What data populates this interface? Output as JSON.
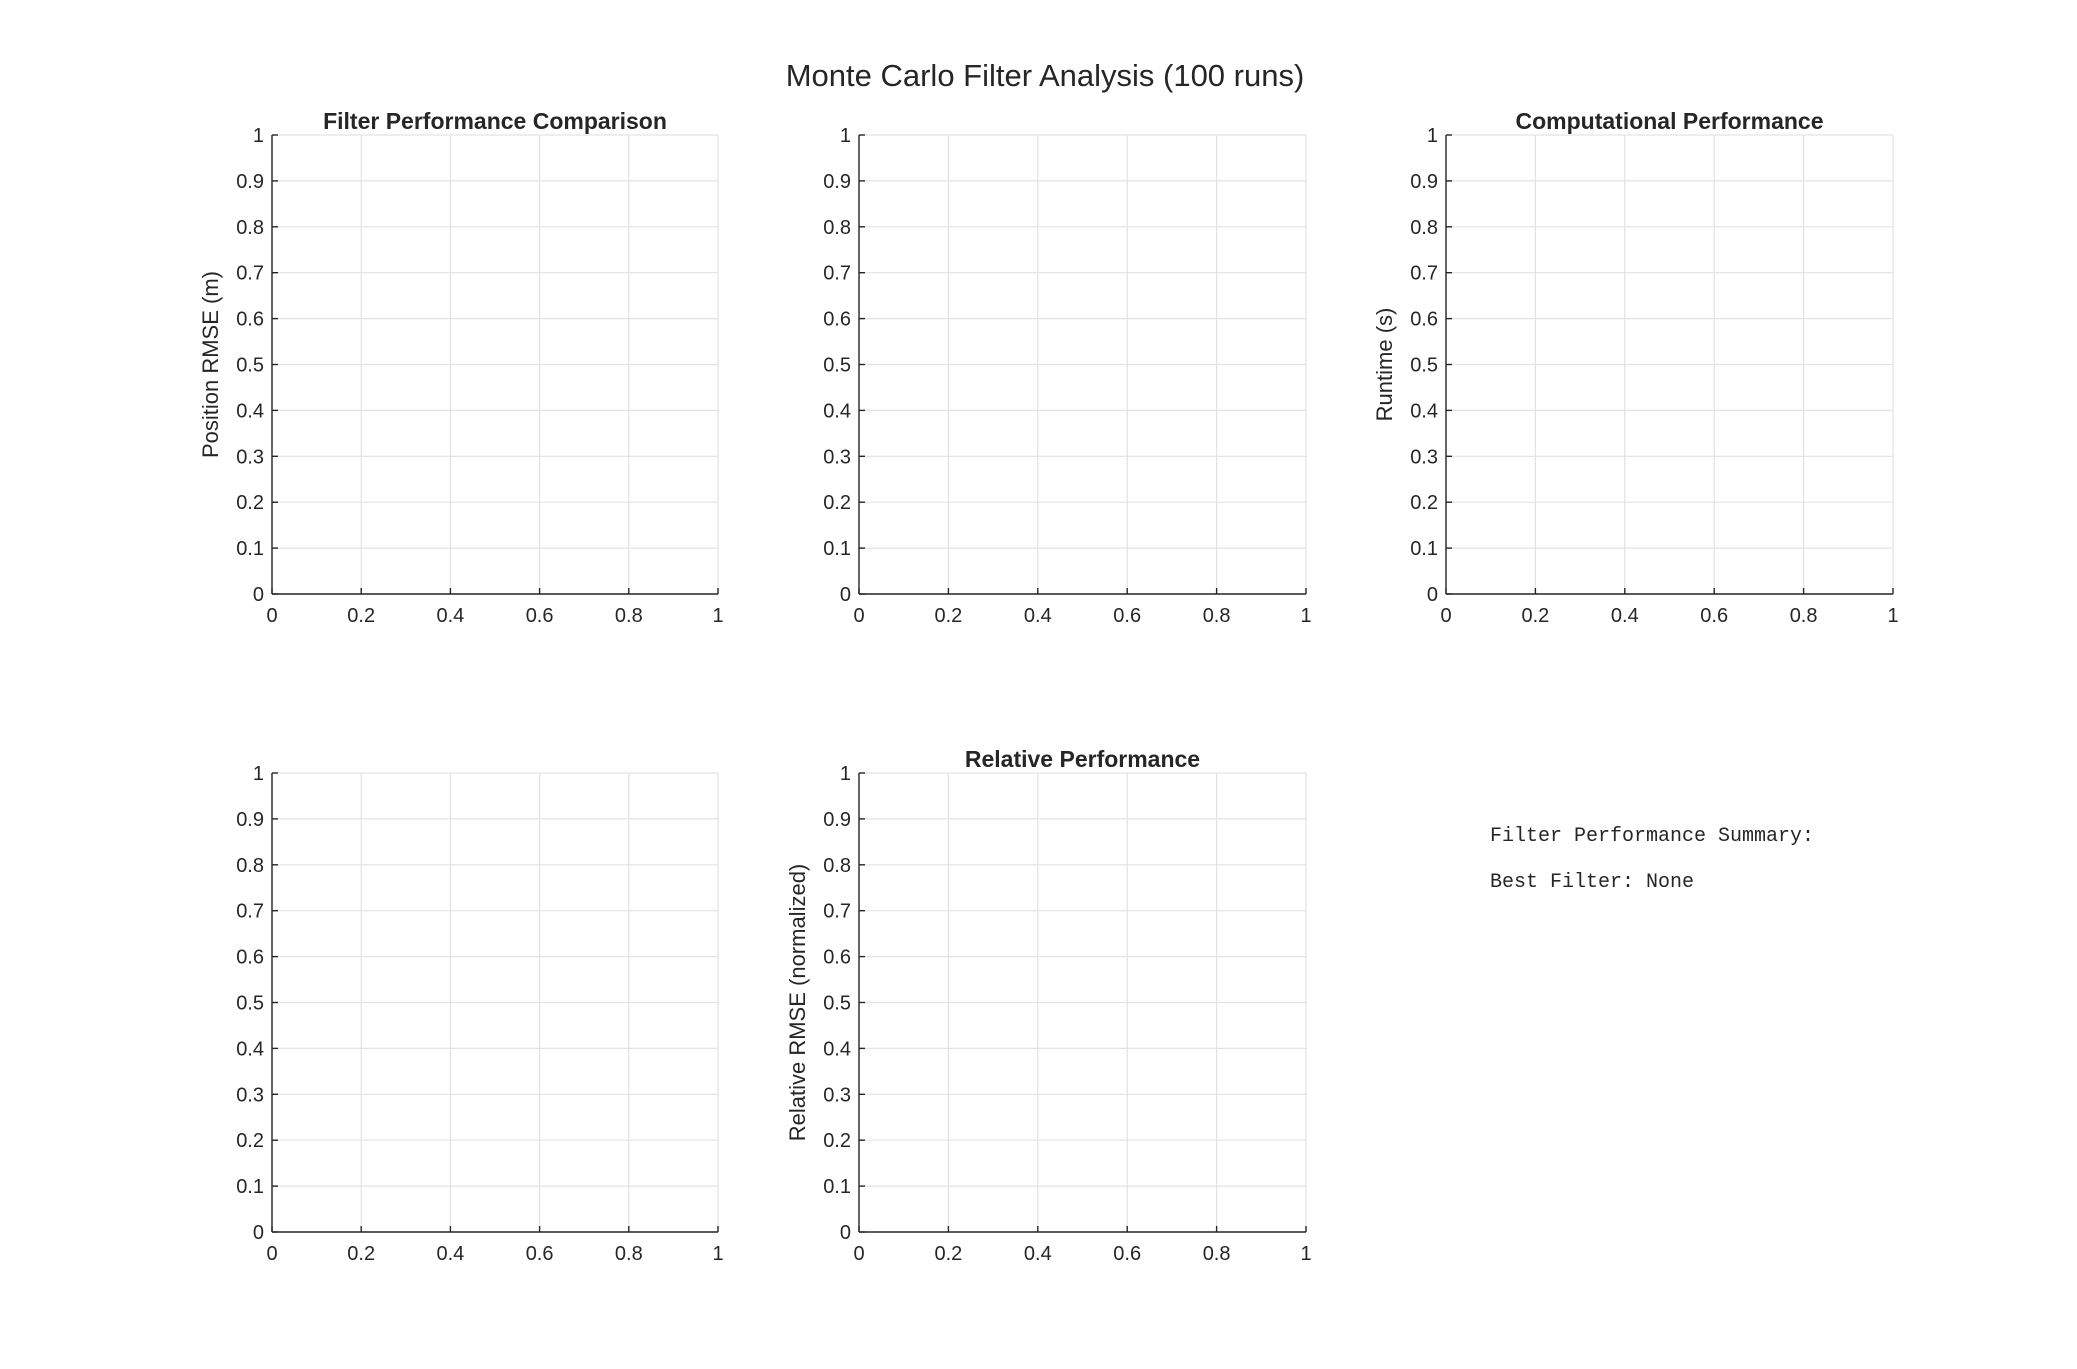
{
  "figure": {
    "title": "Monte Carlo Filter Analysis (100 runs)"
  },
  "chart_data": [
    {
      "type": "bar",
      "title": "Filter Performance Comparison",
      "xlabel": "",
      "ylabel": "Position RMSE (m)",
      "xlim": [
        0,
        1
      ],
      "ylim": [
        0,
        1
      ],
      "xticks": [
        "0",
        "0.2",
        "0.4",
        "0.6",
        "0.8",
        "1"
      ],
      "yticks": [
        "0",
        "0.1",
        "0.2",
        "0.3",
        "0.4",
        "0.5",
        "0.6",
        "0.7",
        "0.8",
        "0.9",
        "1"
      ],
      "grid": true,
      "series": []
    },
    {
      "type": "bar",
      "title": "",
      "xlabel": "",
      "ylabel": "",
      "xlim": [
        0,
        1
      ],
      "ylim": [
        0,
        1
      ],
      "xticks": [
        "0",
        "0.2",
        "0.4",
        "0.6",
        "0.8",
        "1"
      ],
      "yticks": [
        "0",
        "0.1",
        "0.2",
        "0.3",
        "0.4",
        "0.5",
        "0.6",
        "0.7",
        "0.8",
        "0.9",
        "1"
      ],
      "grid": true,
      "series": []
    },
    {
      "type": "bar",
      "title": "Computational Performance",
      "xlabel": "",
      "ylabel": "Runtime (s)",
      "xlim": [
        0,
        1
      ],
      "ylim": [
        0,
        1
      ],
      "xticks": [
        "0",
        "0.2",
        "0.4",
        "0.6",
        "0.8",
        "1"
      ],
      "yticks": [
        "0",
        "0.1",
        "0.2",
        "0.3",
        "0.4",
        "0.5",
        "0.6",
        "0.7",
        "0.8",
        "0.9",
        "1"
      ],
      "grid": true,
      "series": []
    },
    {
      "type": "bar",
      "title": "",
      "xlabel": "",
      "ylabel": "",
      "xlim": [
        0,
        1
      ],
      "ylim": [
        0,
        1
      ],
      "xticks": [
        "0",
        "0.2",
        "0.4",
        "0.6",
        "0.8",
        "1"
      ],
      "yticks": [
        "0",
        "0.1",
        "0.2",
        "0.3",
        "0.4",
        "0.5",
        "0.6",
        "0.7",
        "0.8",
        "0.9",
        "1"
      ],
      "grid": true,
      "series": []
    },
    {
      "type": "bar",
      "title": "Relative Performance",
      "xlabel": "",
      "ylabel": "Relative RMSE (normalized)",
      "xlim": [
        0,
        1
      ],
      "ylim": [
        0,
        1
      ],
      "xticks": [
        "0",
        "0.2",
        "0.4",
        "0.6",
        "0.8",
        "1"
      ],
      "yticks": [
        "0",
        "0.1",
        "0.2",
        "0.3",
        "0.4",
        "0.5",
        "0.6",
        "0.7",
        "0.8",
        "0.9",
        "1"
      ],
      "grid": true,
      "series": []
    }
  ],
  "summary": {
    "heading": "Filter Performance Summary:",
    "best_filter": "Best Filter: None"
  }
}
